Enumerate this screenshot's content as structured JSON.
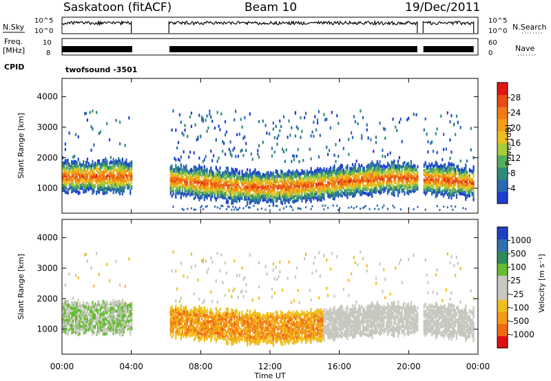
{
  "header": {
    "station": "Saskatoon (fitACF)",
    "beam": "Beam 10",
    "date": "19/Dec/2011"
  },
  "aux_panels": {
    "nsky_label": "N.Sky",
    "nsearch_label": "N.Search",
    "freq_label_1": "Freq.",
    "freq_label_2": "[MHz]",
    "nave_label": "Nave",
    "cpid_label": "CPID",
    "cpid_value": "twofsound  -3501",
    "noise_ticks": [
      "10^5",
      "10^0"
    ],
    "freq_ticks": [
      "10",
      "8"
    ],
    "nave_ticks": [
      "60",
      "0"
    ]
  },
  "chart_data": [
    {
      "type": "heatmap",
      "title": "",
      "ylabel": "Slant Range [km]",
      "xlabel": "Time UT",
      "x_ticks": [
        "00:00",
        "04:00",
        "08:00",
        "12:00",
        "16:00",
        "20:00",
        "00:00"
      ],
      "y_ticks": [
        1000,
        2000,
        3000,
        4000
      ],
      "ylim": [
        180,
        4600
      ],
      "colorbar": {
        "label": "Power [dB]",
        "ticks": [
          "4",
          "8",
          "12",
          "16",
          "20",
          "24",
          "28"
        ],
        "range": [
          0,
          32
        ],
        "colors": [
          "#1f3fd0",
          "#2a69b4",
          "#2f8a7a",
          "#59ad5e",
          "#a8cc3a",
          "#f0c020",
          "#f2a018",
          "#ef7a16",
          "#ea4a14",
          "#e01812"
        ]
      },
      "data_gaps": [
        [
          "04:00",
          "06:10"
        ],
        [
          "20:30",
          "20:50"
        ],
        [
          "23:45",
          "24:00"
        ]
      ]
    },
    {
      "type": "heatmap",
      "title": "",
      "ylabel": "Slant Range [km]",
      "xlabel": "Time UT",
      "x_ticks": [
        "00:00",
        "04:00",
        "08:00",
        "12:00",
        "16:00",
        "20:00",
        "00:00"
      ],
      "y_ticks": [
        1000,
        2000,
        3000,
        4000
      ],
      "ylim": [
        180,
        4600
      ],
      "colorbar": {
        "label": "Velocity [m s⁻¹]",
        "ticks": [
          "1000",
          "500",
          "100",
          "25",
          "-25",
          "-100",
          "-500",
          "-1000"
        ],
        "colors": [
          "#2040c0",
          "#3070b0",
          "#2f8a5a",
          "#66bb33",
          "#c8c8c0",
          "#c8c8c0",
          "#f0c020",
          "#f49a1a",
          "#f06a14",
          "#e01010"
        ]
      },
      "data_gaps": [
        [
          "04:00",
          "06:10"
        ],
        [
          "20:30",
          "20:50"
        ],
        [
          "23:45",
          "24:00"
        ]
      ]
    }
  ]
}
